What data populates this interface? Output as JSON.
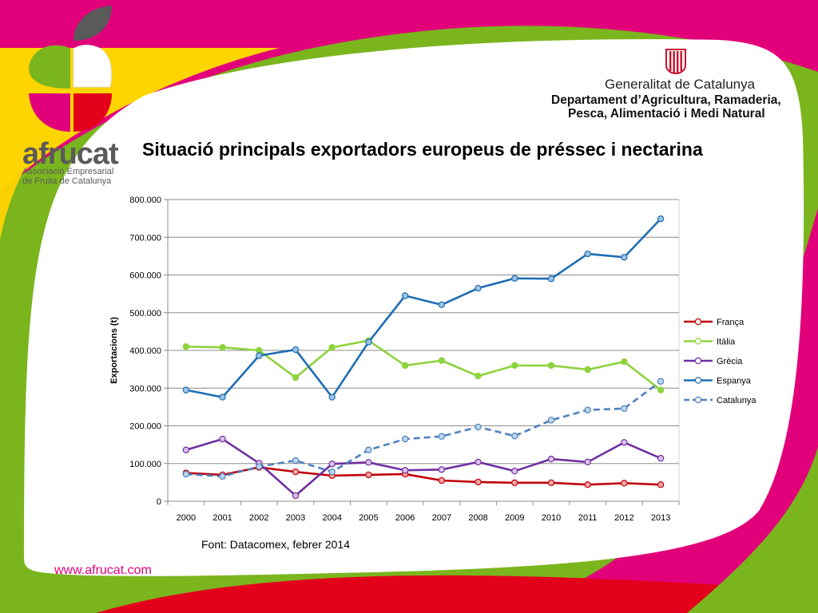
{
  "slide": {
    "title": "Situació principals exportadors europeus de préssec i nectarina",
    "source": "Font: Datacomex, febrer 2014",
    "website": "www.afrucat.com"
  },
  "afrucat": {
    "name": "afrucat",
    "subtitle_1": "Associació Empresarial",
    "subtitle_2": "de Fruita de Catalunya"
  },
  "generalitat": {
    "line1": "Generalitat de Catalunya",
    "line2": "Departament d’Agricultura, Ramaderia,",
    "line3": "Pesca, Alimentació i Medi Natural"
  },
  "colors": {
    "magenta": "#e2007a",
    "yellow": "#ffd500",
    "green": "#7ab51d",
    "red": "#e3001b",
    "logo_grey": "#5a5a5a"
  },
  "chart_data": {
    "type": "line",
    "title": "",
    "xlabel": "",
    "ylabel": "Exportacions (t)",
    "x": [
      "2000",
      "2001",
      "2002",
      "2003",
      "2004",
      "2005",
      "2006",
      "2007",
      "2008",
      "2009",
      "2010",
      "2011",
      "2012",
      "2013"
    ],
    "ylim": [
      0,
      800000
    ],
    "yticks": [
      0,
      100000,
      200000,
      300000,
      400000,
      500000,
      600000,
      700000,
      800000
    ],
    "ytick_labels": [
      "0",
      "100.000",
      "200.000",
      "300.000",
      "400.000",
      "500.000",
      "600.000",
      "700.000",
      "800.000"
    ],
    "grid": true,
    "legend_position": "right",
    "series": [
      {
        "name": "França",
        "color": "#c0000b",
        "dashed": false,
        "values": [
          75000,
          70000,
          90000,
          78000,
          68000,
          70000,
          72000,
          55000,
          51000,
          49000,
          49000,
          44000,
          48000,
          44000
        ]
      },
      {
        "name": "Itàlia",
        "color": "#8ed33d",
        "dashed": false,
        "values": [
          410000,
          408000,
          400000,
          328000,
          408000,
          426000,
          360000,
          373000,
          332000,
          360000,
          360000,
          349000,
          370000,
          295000
        ]
      },
      {
        "name": "Grècia",
        "color": "#7030a0",
        "dashed": false,
        "values": [
          136000,
          165000,
          101000,
          15000,
          99000,
          103000,
          82000,
          84000,
          104000,
          80000,
          112000,
          104000,
          156000,
          114000
        ]
      },
      {
        "name": "Espanya",
        "color": "#1f6db3",
        "dashed": false,
        "values": [
          295000,
          276000,
          386000,
          402000,
          276000,
          422000,
          545000,
          521000,
          565000,
          591000,
          590000,
          656000,
          647000,
          749000
        ]
      },
      {
        "name": "Catalunya",
        "color": "#4f81bd",
        "dashed": true,
        "values": [
          72000,
          66000,
          92000,
          108000,
          78000,
          136000,
          165000,
          172000,
          197000,
          173000,
          215000,
          242000,
          246000,
          318000
        ]
      }
    ]
  }
}
